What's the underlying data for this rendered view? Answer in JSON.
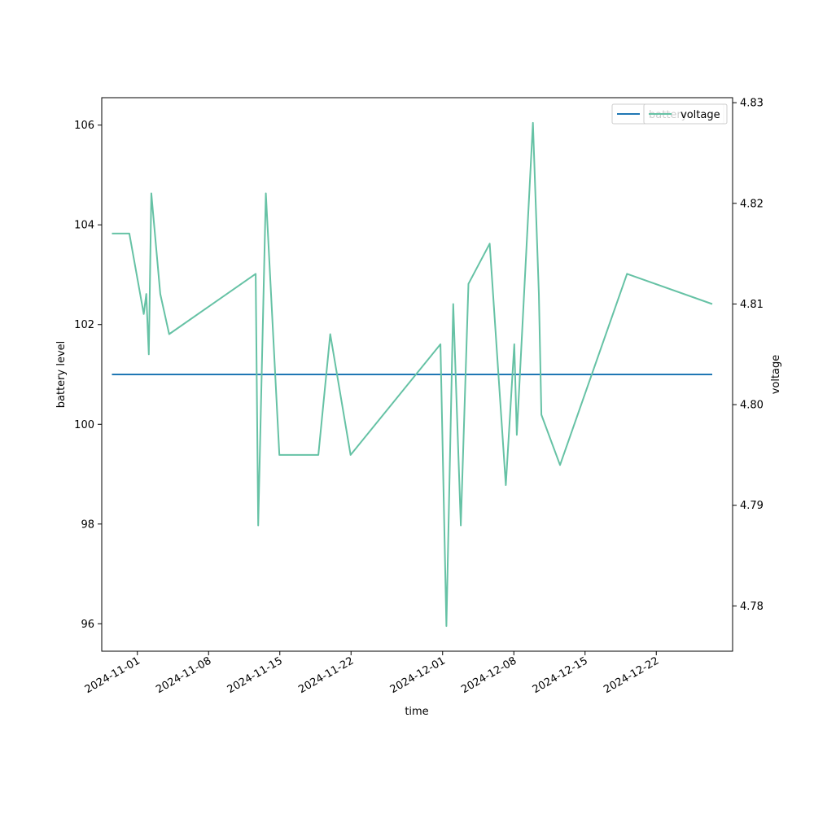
{
  "chart_data": {
    "type": "line",
    "xlabel": "time",
    "ylabel": "battery level",
    "ylabel_right": "voltage",
    "xlim": [
      "2024-10-28T12:00",
      "2024-12-29T12:00"
    ],
    "ylim": [
      95.45,
      106.55
    ],
    "ylim_right": [
      4.7755,
      4.8305
    ],
    "x_ticks": [
      "2024-11-01",
      "2024-11-08",
      "2024-11-15",
      "2024-11-22",
      "2024-12-01",
      "2024-12-08",
      "2024-12-15",
      "2024-12-22"
    ],
    "y_ticks": [
      96,
      98,
      100,
      102,
      104,
      106
    ],
    "y_ticks_right": [
      4.78,
      4.79,
      4.8,
      4.81,
      4.82,
      4.83
    ],
    "legend_position": "upper-right",
    "colors": {
      "battery": "#1f77b4",
      "voltage": "#66c2a5"
    },
    "series": [
      {
        "name": "battery",
        "axis": "left",
        "x": [
          "2024-10-29T12:00",
          "2024-12-27T12:00"
        ],
        "values": [
          101,
          101
        ]
      },
      {
        "name": "voltage",
        "axis": "right",
        "x": [
          "2024-10-29T12:00",
          "2024-10-31T05:00",
          "2024-11-01T15:00",
          "2024-11-01T21:00",
          "2024-11-02T03:00",
          "2024-11-02T09:00",
          "2024-11-03T06:00",
          "2024-11-04T03:00",
          "2024-11-12T15:00",
          "2024-11-12T21:00",
          "2024-11-13T15:00",
          "2024-11-14T23:00",
          "2024-11-18T19:00",
          "2024-11-19T23:00",
          "2024-11-21T23:00",
          "2024-11-30T19:00",
          "2024-12-01T09:00",
          "2024-12-02T01:00",
          "2024-12-02T19:00",
          "2024-12-03T13:00",
          "2024-12-05T15:00",
          "2024-12-07T05:00",
          "2024-12-08T01:00",
          "2024-12-08T07:00",
          "2024-12-09T21:00",
          "2024-12-10T11:00",
          "2024-12-10T17:00",
          "2024-12-12T13:00",
          "2024-12-19T03:00",
          "2024-12-27T12:00"
        ],
        "values": [
          4.817,
          4.817,
          4.809,
          4.811,
          4.805,
          4.821,
          4.811,
          4.807,
          4.813,
          4.788,
          4.821,
          4.795,
          4.795,
          4.807,
          4.795,
          4.806,
          4.778,
          4.81,
          4.788,
          4.812,
          4.816,
          4.792,
          4.806,
          4.797,
          4.828,
          4.811,
          4.799,
          4.794,
          4.813,
          4.81
        ]
      }
    ]
  }
}
